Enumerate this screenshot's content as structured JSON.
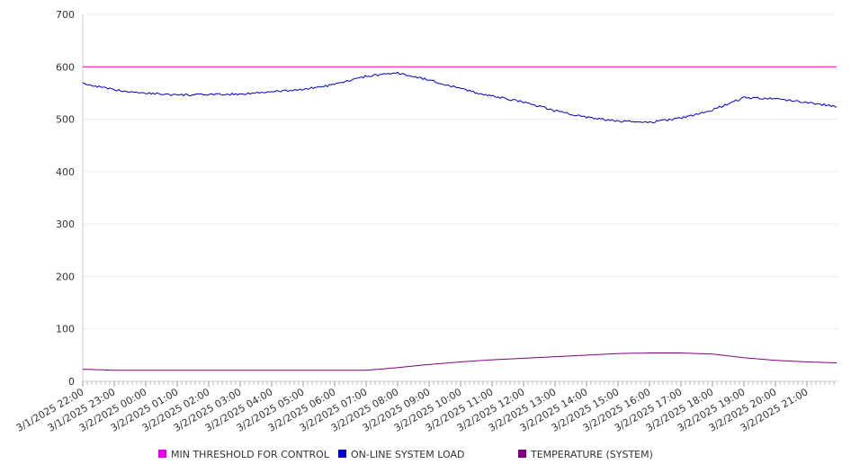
{
  "chart_data": {
    "type": "line",
    "ylim": [
      0,
      700
    ],
    "yticks": [
      0,
      100,
      200,
      300,
      400,
      500,
      600,
      700
    ],
    "categories": [
      "3/1/2025 22:00",
      "3/1/2025 23:00",
      "3/2/2025 00:00",
      "3/2/2025 01:00",
      "3/2/2025 02:00",
      "3/2/2025 03:00",
      "3/2/2025 04:00",
      "3/2/2025 05:00",
      "3/2/2025 06:00",
      "3/2/2025 07:00",
      "3/2/2025 08:00",
      "3/2/2025 09:00",
      "3/2/2025 10:00",
      "3/2/2025 11:00",
      "3/2/2025 12:00",
      "3/2/2025 13:00",
      "3/2/2025 14:00",
      "3/2/2025 15:00",
      "3/2/2025 16:00",
      "3/2/2025 17:00",
      "3/2/2025 18:00",
      "3/2/2025 19:00",
      "3/2/2025 20:00",
      "3/2/2025 21:00"
    ],
    "grid": true,
    "legend_position": "bottom",
    "series": [
      {
        "name": "MIN THRESHOLD FOR CONTROL",
        "color": "#e600e6",
        "values": [
          600,
          600,
          600,
          600,
          600,
          600,
          600,
          600,
          600,
          600,
          600,
          600,
          600,
          600,
          600,
          600,
          600,
          600,
          600,
          600,
          600,
          600,
          600,
          600
        ]
      },
      {
        "name": "ON-LINE SYSTEM LOAD",
        "color": "#0000cc",
        "values": [
          568,
          556,
          550,
          546,
          547,
          548,
          552,
          557,
          566,
          582,
          588,
          575,
          558,
          544,
          533,
          516,
          504,
          496,
          494,
          502,
          518,
          541,
          539,
          532
        ]
      },
      {
        "name": "TEMPERATURE (SYSTEM)",
        "color": "#800080",
        "values": [
          23,
          21,
          21,
          21,
          21,
          21,
          21,
          21,
          21,
          21,
          26,
          32,
          37,
          41,
          44,
          47,
          50,
          53,
          54,
          54,
          52,
          45,
          40,
          37
        ]
      }
    ],
    "x_end_value": {
      "ON-LINE SYSTEM LOAD": 524,
      "TEMPERATURE (SYSTEM)": 35,
      "MIN THRESHOLD FOR CONTROL": 600
    }
  }
}
